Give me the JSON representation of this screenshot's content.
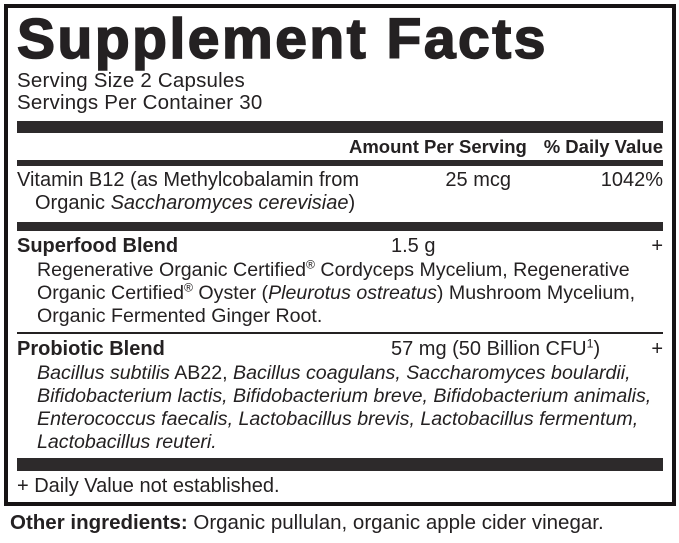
{
  "colors": {
    "ink": "#242122",
    "bar": "#2d2a2b"
  },
  "panel": {
    "title": "Supplement Facts",
    "serving_size": "Serving Size 2 Capsules",
    "servings_per_container": "Servings Per Container 30",
    "columns": {
      "amount_per_serving": "Amount Per Serving",
      "daily_value": "% Daily Value"
    },
    "rows": {
      "vitamin_b12": {
        "name_line1": "Vitamin B12 (as Methylcobalamin from",
        "name_line2_prefix": "Organic ",
        "name_line2_species": "Saccharomyces cerevisiae",
        "name_line2_suffix": ")",
        "amount": "25 mcg",
        "daily_value": "1042%"
      },
      "superfood": {
        "name": "Superfood Blend",
        "amount": "1.5 g",
        "daily_value": "+",
        "desc_part1": "Regenerative Organic Certified",
        "reg_mark": "®",
        "desc_part2": " Cordyceps Mycelium, Regenerative Organic Certified",
        "desc_part3": " Oyster (",
        "desc_species": "Pleurotus ostreatus",
        "desc_part4": ") Mushroom Mycelium, Organic Fermented Ginger Root."
      },
      "probiotic": {
        "name": "Probiotic Blend",
        "amount_prefix": "57 mg (50 Billion CFU",
        "amount_sup": "1",
        "amount_suffix": ")",
        "daily_value": "+",
        "desc_italic1": "Bacillus subtilis",
        "desc_roman1": " AB22, ",
        "desc_italic2": "Bacillus coagulans, Saccharomyces boulardii, Bifidobacterium lactis, Bifidobacterium breve, Bifidobacterium animalis, Enterococcus faecalis, Lactobacillus brevis, Lactobacillus fermentum, Lactobacillus reuteri."
      }
    },
    "footnote": "+ Daily Value not established."
  },
  "other_ingredients": {
    "label": "Other ingredients:",
    "text": " Organic pullulan, organic apple cider vinegar."
  }
}
